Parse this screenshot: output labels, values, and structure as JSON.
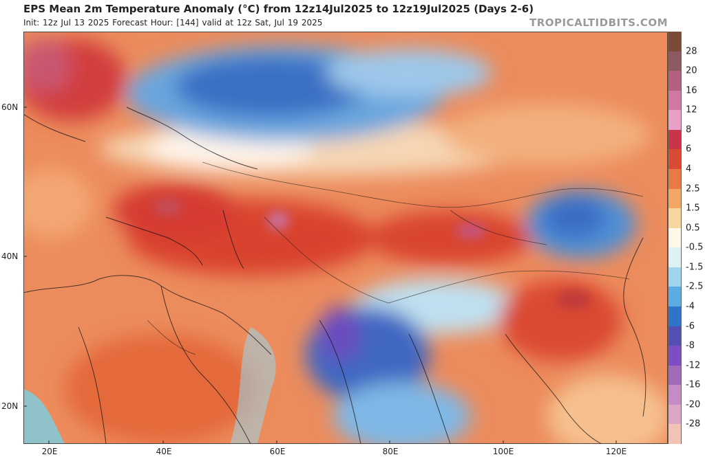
{
  "header": {
    "title": "EPS Mean 2m Temperature Anomaly (°C) from 12z14Jul2025 to 12z19Jul2025 (Days 2-6)",
    "subtitle": "Init: 12z Jul 13 2025   Forecast Hour: [144]   valid at 12z Sat, Jul 19 2025",
    "source": "TROPICALTIDBITS.COM"
  },
  "map": {
    "lat_labels": [
      "60N",
      "40N",
      "20N"
    ],
    "lon_labels": [
      "20E",
      "40E",
      "60E",
      "80E",
      "100E",
      "120E"
    ]
  },
  "legend": {
    "labels": [
      "28",
      "20",
      "16",
      "12",
      "8",
      "6",
      "4",
      "2.5",
      "1.5",
      "0.5",
      "-0.5",
      "-1.5",
      "-2.5",
      "-4",
      "-6",
      "-8",
      "-12",
      "-16",
      "-20",
      "-28"
    ],
    "colors": [
      "#7b4b36",
      "#8c5a60",
      "#b3617f",
      "#d07aa3",
      "#ea9fc8",
      "#c8354b",
      "#d94b34",
      "#ea7a43",
      "#f4a765",
      "#f8d6a0",
      "#fff8e8",
      "#dff2f3",
      "#9fd6ee",
      "#5cabe1",
      "#2f74c8",
      "#5450b3",
      "#7e4dc2",
      "#a26ab8",
      "#c68bc6",
      "#dca6c4",
      "#f2c2b4"
    ]
  }
}
